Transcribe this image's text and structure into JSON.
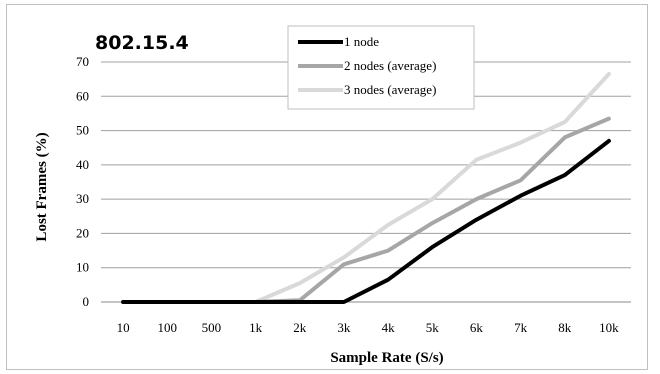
{
  "chart_data": {
    "type": "line",
    "title": "802.15.4",
    "xlabel": "Sample Rate (S/s)",
    "ylabel": "Lost Frames (%)",
    "categories": [
      "10",
      "100",
      "500",
      "1k",
      "2k",
      "3k",
      "4k",
      "5k",
      "6k",
      "7k",
      "8k",
      "10k"
    ],
    "ylim": [
      0,
      70
    ],
    "yticks": [
      "0",
      "10",
      "20",
      "30",
      "40",
      "50",
      "60",
      "70"
    ],
    "grid": true,
    "legend": "top-center",
    "series": [
      {
        "name": "1 node",
        "color": "#000000",
        "values": [
          0,
          0,
          0,
          0,
          0,
          0,
          6.5,
          16,
          24,
          31,
          37,
          47
        ]
      },
      {
        "name": "2 nodes (average)",
        "color": "#a6a6a6",
        "values": [
          0,
          0,
          0,
          0,
          0.5,
          11,
          15,
          23,
          30,
          35.5,
          48,
          53.5
        ]
      },
      {
        "name": "3 nodes (average)",
        "color": "#d9d9d9",
        "values": [
          0,
          0,
          0,
          0,
          5.5,
          13,
          22.5,
          30,
          41.5,
          46.5,
          52.5,
          66.5
        ]
      }
    ]
  }
}
